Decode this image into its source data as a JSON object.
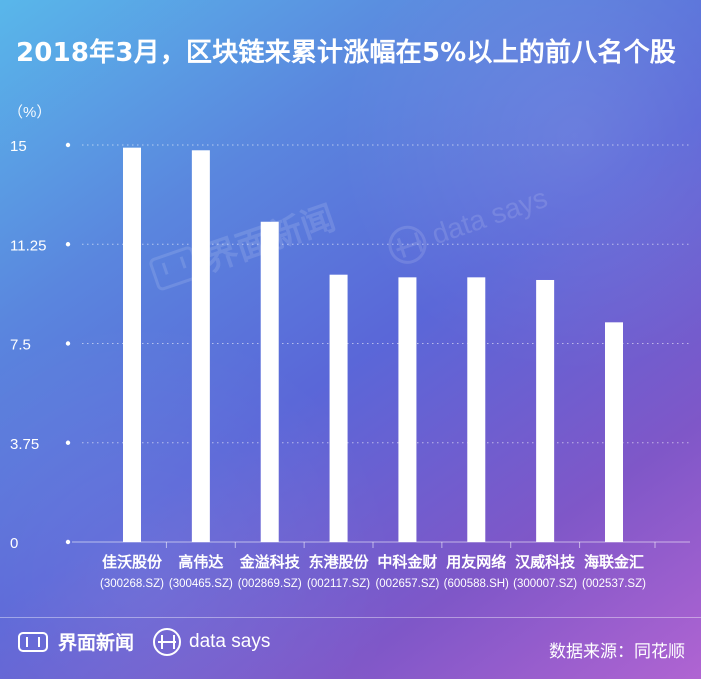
{
  "chart_data": {
    "type": "bar",
    "title": "2018年3月，区块链来累计涨幅在5%以上的前八名个股",
    "y_unit": "（%）",
    "yticks": [
      "0",
      "3.75",
      "7.5",
      "11.25",
      "15"
    ],
    "ylim": [
      0,
      15
    ],
    "grid": true,
    "categories": [
      "佳沃股份",
      "高伟达",
      "金溢科技",
      "东港股份",
      "中科金财",
      "用友网络",
      "汉威科技",
      "海联金汇"
    ],
    "codes": [
      "(300268.SZ)",
      "(300465.SZ)",
      "(002869.SZ)",
      "(002117.SZ)",
      "(002657.SZ)",
      "(600588.SH)",
      "(300007.SZ)",
      "(002537.SZ)"
    ],
    "values": [
      14.9,
      14.8,
      12.1,
      10.1,
      10.0,
      10.0,
      9.9,
      8.3
    ],
    "bar_color": "#ffffff",
    "grid_color": "#ffffff"
  },
  "watermarks": {
    "left": "界面新闻",
    "right": "data says"
  },
  "footer": {
    "brand": "界面新闻",
    "datasays": "data says",
    "source": "数据来源：同花顺"
  }
}
